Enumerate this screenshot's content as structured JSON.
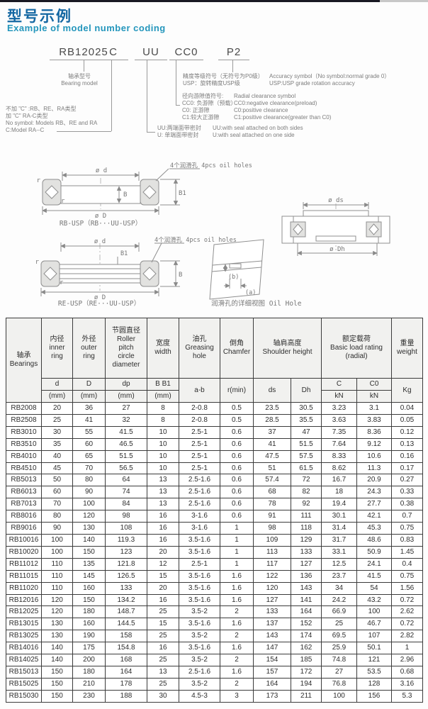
{
  "page": {
    "title_zh": "型号示例",
    "title_en": "Example of model number coding"
  },
  "coding": {
    "segments": [
      {
        "label": "RB12025"
      },
      {
        "label": "C"
      },
      {
        "label": "UU"
      },
      {
        "label": "CC0"
      },
      {
        "label": "P2"
      }
    ],
    "bearing_model_zh": "轴承型号",
    "bearing_model_en": "Bearing model",
    "model_type_lines": [
      "不加 \"C\" :RB、RE、RA类型",
      "加 \"C\" RA-C类型",
      "No symbol: Models RB、RE and RA",
      "C:Model RA--C"
    ],
    "seal_lines_zh": [
      "UU:两端面带密封",
      "U: 单端面带密封"
    ],
    "seal_lines_en": [
      "UU:with seal attached on both sides",
      "U:with seal attached on one side"
    ],
    "clearance_lines_zh": [
      "径向游隙值符号:",
      "CC0: 负游隙（预载）",
      "C0: 正游隙",
      "C1:较大正游隙"
    ],
    "clearance_lines_en": [
      "Radial clearance symbol",
      "CC0:negative clearance(preload)",
      "C0:positive clearance",
      "C1:positive clearance(greater than C0)"
    ],
    "accuracy_lines_zh": [
      "精度等级符号（无符号为P0级）",
      "USP：旋转精度USP级"
    ],
    "accuracy_lines_en": [
      "Accuracy symbol（No symbol:normal grade 0）",
      "USP:USP grade rotation accuracy"
    ]
  },
  "diagrams": {
    "oil_holes_label": "4个润滑孔 4pcs oil holes",
    "rb_caption": "RB-USP（RB···UU-USP）",
    "re_caption": "RE-USP（RE···UU-USP）",
    "oil_hole_caption": "润滑孔的详细视图 Oil Hole",
    "dim_d": "ø d",
    "dim_D": "ø D",
    "dim_B": "B",
    "dim_B1": "B1",
    "dim_r_top": "r",
    "dim_r_bottom": "r",
    "dim_ds": "ø ds",
    "dim_Dh": "ø Dh",
    "oil_a": "(a)",
    "oil_b": "(b)"
  },
  "table": {
    "group_headers": {
      "bearings": "轴承\nBearings",
      "inner": "内径\ninner\nring",
      "outer": "外径\nouter\nring",
      "pitch": "节圆直径\nRoller\npitch\ncircle\ndiameter",
      "width": "宽度\nwidth",
      "grease": "油孔\nGreasing\nhole",
      "chamfer": "倒角\nChamfer",
      "shoulder": "轴肩高度\nShoulder height",
      "load": "额定载荷\nBasic load rating\n(radial)",
      "weight": "重量\nweight"
    },
    "sub_headers": {
      "d": "d",
      "D": "D",
      "dp": "dp",
      "B": "B  B1",
      "mm": "(mm)",
      "ab": "a-b",
      "rmin": "r(min)",
      "ds": "ds",
      "Dh": "Dh",
      "C": "C",
      "C0": "C0",
      "kN": "kN",
      "Kg": "Kg"
    },
    "rows": [
      [
        "RB2008",
        "20",
        "36",
        "27",
        "8",
        "2-0.8",
        "0.5",
        "23.5",
        "30.5",
        "3.23",
        "3.1",
        "0.04"
      ],
      [
        "RB2508",
        "25",
        "41",
        "32",
        "8",
        "2-0.8",
        "0.5",
        "28.5",
        "35.5",
        "3.63",
        "3.83",
        "0.05"
      ],
      [
        "RB3010",
        "30",
        "55",
        "41.5",
        "10",
        "2.5-1",
        "0.6",
        "37",
        "47",
        "7.35",
        "8.36",
        "0.12"
      ],
      [
        "RB3510",
        "35",
        "60",
        "46.5",
        "10",
        "2.5-1",
        "0.6",
        "41",
        "51.5",
        "7.64",
        "9.12",
        "0.13"
      ],
      [
        "RB4010",
        "40",
        "65",
        "51.5",
        "10",
        "2.5-1",
        "0.6",
        "47.5",
        "57.5",
        "8.33",
        "10.6",
        "0.16"
      ],
      [
        "RB4510",
        "45",
        "70",
        "56.5",
        "10",
        "2.5-1",
        "0.6",
        "51",
        "61.5",
        "8.62",
        "11.3",
        "0.17"
      ],
      [
        "RB5013",
        "50",
        "80",
        "64",
        "13",
        "2.5-1.6",
        "0.6",
        "57.4",
        "72",
        "16.7",
        "20.9",
        "0.27"
      ],
      [
        "RB6013",
        "60",
        "90",
        "74",
        "13",
        "2.5-1.6",
        "0.6",
        "68",
        "82",
        "18",
        "24.3",
        "0.33"
      ],
      [
        "RB7013",
        "70",
        "100",
        "84",
        "13",
        "2.5-1.6",
        "0.6",
        "78",
        "92",
        "19.4",
        "27.7",
        "0.38"
      ],
      [
        "RB8016",
        "80",
        "120",
        "98",
        "16",
        "3-1.6",
        "0.6",
        "91",
        "111",
        "30.1",
        "42.1",
        "0.7"
      ],
      [
        "RB9016",
        "90",
        "130",
        "108",
        "16",
        "3-1.6",
        "1",
        "98",
        "118",
        "31.4",
        "45.3",
        "0.75"
      ],
      [
        "RB10016",
        "100",
        "140",
        "119.3",
        "16",
        "3.5-1.6",
        "1",
        "109",
        "129",
        "31.7",
        "48.6",
        "0.83"
      ],
      [
        "RB10020",
        "100",
        "150",
        "123",
        "20",
        "3.5-1.6",
        "1",
        "113",
        "133",
        "33.1",
        "50.9",
        "1.45"
      ],
      [
        "RB11012",
        "110",
        "135",
        "121.8",
        "12",
        "2.5-1",
        "1",
        "117",
        "127",
        "12.5",
        "24.1",
        "0.4"
      ],
      [
        "RB11015",
        "110",
        "145",
        "126.5",
        "15",
        "3.5-1.6",
        "1.6",
        "122",
        "136",
        "23.7",
        "41.5",
        "0.75"
      ],
      [
        "RB11020",
        "110",
        "160",
        "133",
        "20",
        "3.5-1.6",
        "1.6",
        "120",
        "143",
        "34",
        "54",
        "1.56"
      ],
      [
        "RB12016",
        "120",
        "150",
        "134.2",
        "16",
        "3.5-1.6",
        "1.6",
        "127",
        "141",
        "24.2",
        "43.2",
        "0.72"
      ],
      [
        "RB12025",
        "120",
        "180",
        "148.7",
        "25",
        "3.5-2",
        "2",
        "133",
        "164",
        "66.9",
        "100",
        "2.62"
      ],
      [
        "RB13015",
        "130",
        "160",
        "144.5",
        "15",
        "3.5-1.6",
        "1.6",
        "137",
        "152",
        "25",
        "46.7",
        "0.72"
      ],
      [
        "RB13025",
        "130",
        "190",
        "158",
        "25",
        "3.5-2",
        "2",
        "143",
        "174",
        "69.5",
        "107",
        "2.82"
      ],
      [
        "RB14016",
        "140",
        "175",
        "154.8",
        "16",
        "3.5-1.6",
        "1.6",
        "147",
        "162",
        "25.9",
        "50.1",
        "1"
      ],
      [
        "RB14025",
        "140",
        "200",
        "168",
        "25",
        "3.5-2",
        "2",
        "154",
        "185",
        "74.8",
        "121",
        "2.96"
      ],
      [
        "RB15013",
        "150",
        "180",
        "164",
        "13",
        "2.5-1.6",
        "1.6",
        "157",
        "172",
        "27",
        "53.5",
        "0.68"
      ],
      [
        "RB15025",
        "150",
        "210",
        "178",
        "25",
        "3.5-2",
        "2",
        "164",
        "194",
        "76.8",
        "128",
        "3.16"
      ],
      [
        "RB15030",
        "150",
        "230",
        "188",
        "30",
        "4.5-3",
        "3",
        "173",
        "211",
        "100",
        "156",
        "5.3"
      ]
    ]
  }
}
